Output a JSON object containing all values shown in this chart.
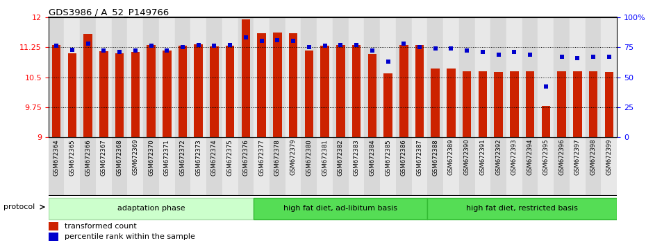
{
  "title": "GDS3986 / A_52_P149766",
  "samples": [
    "GSM672364",
    "GSM672365",
    "GSM672366",
    "GSM672367",
    "GSM672368",
    "GSM672369",
    "GSM672370",
    "GSM672371",
    "GSM672372",
    "GSM672373",
    "GSM672374",
    "GSM672375",
    "GSM672376",
    "GSM672377",
    "GSM672378",
    "GSM672379",
    "GSM672380",
    "GSM672381",
    "GSM672382",
    "GSM672383",
    "GSM672384",
    "GSM672385",
    "GSM672386",
    "GSM672387",
    "GSM672388",
    "GSM672389",
    "GSM672390",
    "GSM672391",
    "GSM672392",
    "GSM672393",
    "GSM672394",
    "GSM672395",
    "GSM672396",
    "GSM672397",
    "GSM672398",
    "GSM672399"
  ],
  "red_values": [
    11.3,
    11.1,
    11.58,
    11.15,
    11.1,
    11.14,
    11.3,
    11.16,
    11.28,
    11.32,
    11.27,
    11.28,
    11.95,
    11.6,
    11.62,
    11.6,
    11.17,
    11.28,
    11.3,
    11.3,
    11.08,
    10.6,
    11.3,
    11.3,
    10.72,
    10.72,
    10.65,
    10.65,
    10.63,
    10.65,
    10.65,
    9.78,
    10.65,
    10.65,
    10.65,
    10.63
  ],
  "blue_values": [
    76,
    73,
    78,
    72,
    71,
    72,
    76,
    72,
    75,
    77,
    76,
    77,
    83,
    80,
    81,
    80,
    75,
    76,
    77,
    77,
    72,
    63,
    78,
    75,
    74,
    74,
    72,
    71,
    69,
    71,
    69,
    42,
    67,
    66,
    67,
    67
  ],
  "groups": [
    {
      "label": "adaptation phase",
      "start": 0,
      "end": 13,
      "color": "#ccffcc"
    },
    {
      "label": "high fat diet, ad-libitum basis",
      "start": 13,
      "end": 24,
      "color": "#55dd55"
    },
    {
      "label": "high fat diet, restricted basis",
      "start": 24,
      "end": 36,
      "color": "#55dd55"
    }
  ],
  "ylim_left": [
    9,
    12
  ],
  "ylim_right": [
    0,
    100
  ],
  "yticks_left": [
    9,
    9.75,
    10.5,
    11.25,
    12
  ],
  "yticks_right": [
    0,
    25,
    50,
    75,
    100
  ],
  "ytick_labels_left": [
    "9",
    "9.75",
    "10.5",
    "11.25",
    "12"
  ],
  "ytick_labels_right": [
    "0",
    "25",
    "50",
    "75",
    "100%"
  ],
  "bar_color": "#cc2200",
  "dot_color": "#0000cc",
  "legend_items": [
    {
      "color": "#cc2200",
      "label": "transformed count"
    },
    {
      "color": "#0000cc",
      "label": "percentile rank within the sample"
    }
  ],
  "protocol_label": "protocol",
  "group_border_colors": [
    "#aaddaa",
    "#33bb33",
    "#33bb33"
  ]
}
